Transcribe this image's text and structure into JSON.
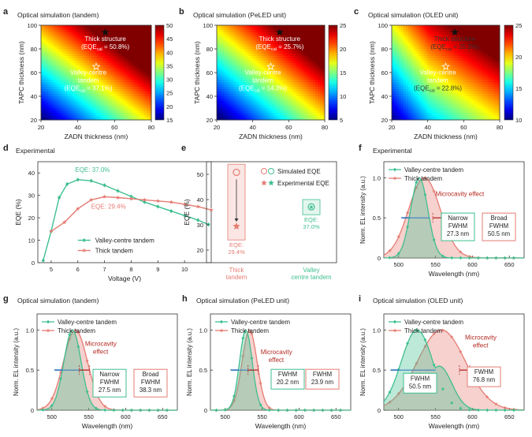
{
  "colors": {
    "green": "#3fbf8f",
    "salmon": "#e57c73",
    "red_dark": "#b22a22",
    "blue_arrow": "#3a7fc1"
  },
  "panels": {
    "a": {
      "letter": "a",
      "title": "Optical simulation (tandem)",
      "star_filled": "Thick structure",
      "star_filled_eqe": "(EQE",
      "star_filled_val": " = 50.8%)",
      "star_open": "Valley-centre",
      "star_open2": "tandem",
      "star_open_eqe": "(EQE",
      "star_open_val": " = 37.1%)",
      "sub": "cal"
    },
    "b": {
      "letter": "b",
      "title": "Optical simulation (PeLED unit)",
      "star_filled": "Thick structure",
      "star_filled_eqe": "(EQE",
      "star_filled_val": " = 25.7%)",
      "star_open": "Valley-centre",
      "star_open2": "tandem",
      "star_open_eqe": "(EQE",
      "star_open_val": " = 14.3%)",
      "sub": "cal"
    },
    "c": {
      "letter": "c",
      "title": "Optical simulation (OLED unit)",
      "star_filled": "Thick structure",
      "star_filled_eqe": "(EQE",
      "star_filled_val": " = 25.2%)",
      "star_open": "Valley-centre",
      "star_open2": "tandem",
      "star_open_eqe": "(EQE",
      "star_open_val": " = 22.8%)",
      "sub": "cal"
    },
    "d": {
      "letter": "d",
      "title": "Experimental",
      "ann_green": "EQE: 37.0%",
      "ann_salmon": "EQE: 29.4%"
    },
    "e": {
      "letter": "e",
      "legend_sim": "Simulated EQE",
      "legend_exp": "Experimental EQE",
      "ann_salmon": "EQE:",
      "ann_salmon_v": "29.4%",
      "ann_green": "EQE:",
      "ann_green_v": "37.0%"
    },
    "f": {
      "letter": "f",
      "title": "Experimental",
      "micro": "Microcavity effect",
      "box1": [
        "Narrow",
        "FWHM",
        "27.3 nm"
      ],
      "box2": [
        "Broad",
        "FWHM",
        "50.5 nm"
      ]
    },
    "g": {
      "letter": "g",
      "title": "Optical simulation (tandem)",
      "micro": [
        "Microcavity",
        "effect"
      ],
      "box1": [
        "Narrow",
        "FWHM",
        "27.5 nm"
      ],
      "box2": [
        "Broad",
        "FWHM",
        "38.3 nm"
      ]
    },
    "h": {
      "letter": "h",
      "title": "Optical simulation (PeLED unit)",
      "micro": [
        "Microcavity",
        "effect"
      ],
      "box1": [
        "FWHM",
        "20.2 nm"
      ],
      "box2": [
        "FWHM",
        "23.9 nm"
      ]
    },
    "i": {
      "letter": "i",
      "title": "Optical simulation (OLED unit)",
      "micro": [
        "Microcavity",
        "effect"
      ],
      "box1": [
        "FWHM",
        "50.5 nm"
      ],
      "box2": [
        "FWHM",
        "76.8 nm"
      ]
    }
  },
  "chart_data": [
    {
      "type": "heatmap",
      "panel": "a",
      "xlabel": "ZADN thickness (nm)",
      "ylabel": "TAPC thickness (nm)",
      "xlim": [
        20,
        80
      ],
      "ylim": [
        20,
        100
      ],
      "x_ticks": [
        "20",
        "40",
        "60",
        "80"
      ],
      "y_ticks": [
        "20",
        "40",
        "60",
        "80",
        "100"
      ],
      "colorbar_ticks": [
        "15",
        "20",
        "25",
        "30",
        "35",
        "40",
        "45",
        "50"
      ],
      "colorbar_range": [
        15,
        50
      ],
      "points": [
        {
          "name": "Thick structure",
          "x": 55,
          "y": 94,
          "value": 50.8
        },
        {
          "name": "Valley-centre tandem",
          "x": 50,
          "y": 65,
          "value": 37.1
        }
      ]
    },
    {
      "type": "heatmap",
      "panel": "b",
      "xlabel": "ZADN thickness (nm)",
      "ylabel": "TAPC thickness (nm)",
      "xlim": [
        20,
        80
      ],
      "ylim": [
        20,
        100
      ],
      "x_ticks": [
        "20",
        "40",
        "60",
        "80"
      ],
      "y_ticks": [
        "20",
        "40",
        "60",
        "80",
        "100"
      ],
      "colorbar_ticks": [
        "5",
        "10",
        "15",
        "20",
        "25"
      ],
      "colorbar_range": [
        5,
        25
      ],
      "points": [
        {
          "name": "Thick structure",
          "x": 55,
          "y": 94,
          "value": 25.7
        },
        {
          "name": "Valley-centre tandem",
          "x": 50,
          "y": 65,
          "value": 14.3
        }
      ]
    },
    {
      "type": "heatmap",
      "panel": "c",
      "xlabel": "ZADN thickness (nm)",
      "ylabel": "TAPC thickness (nm)",
      "xlim": [
        20,
        80
      ],
      "ylim": [
        20,
        100
      ],
      "x_ticks": [
        "20",
        "40",
        "60",
        "80"
      ],
      "y_ticks": [
        "20",
        "40",
        "60",
        "80",
        "100"
      ],
      "colorbar_ticks": [
        "10",
        "15",
        "20",
        "25"
      ],
      "colorbar_range": [
        10,
        25
      ],
      "points": [
        {
          "name": "Thick structure",
          "x": 55,
          "y": 94,
          "value": 25.2
        },
        {
          "name": "Valley-centre tandem",
          "x": 50,
          "y": 65,
          "value": 22.8
        }
      ]
    },
    {
      "type": "line",
      "panel": "d",
      "xlabel": "Voltage (V)",
      "ylabel": "EQE (%)",
      "xlim": [
        4.5,
        11
      ],
      "ylim": [
        0,
        45
      ],
      "x_ticks": [
        "5",
        "6",
        "7",
        "8",
        "9",
        "10"
      ],
      "y_ticks": [
        "0",
        "10",
        "20",
        "30",
        "40"
      ],
      "series": [
        {
          "name": "Valley-centre tandem",
          "color": "#3fbf8f",
          "x": [
            4.7,
            5.0,
            5.3,
            5.6,
            6.0,
            6.5,
            7.0,
            7.5,
            8.0,
            8.5,
            9.0,
            9.5,
            10.0,
            10.5,
            10.9
          ],
          "y": [
            1,
            14,
            29,
            35,
            37,
            36.5,
            34.5,
            32,
            29.5,
            27,
            25,
            23,
            21,
            19,
            17
          ]
        },
        {
          "name": "Thick tandem",
          "color": "#e57c73",
          "x": [
            5.0,
            5.5,
            6.0,
            6.5,
            7.0,
            7.5,
            8.0,
            8.5,
            9.0,
            9.5,
            10.0,
            10.5,
            11.0
          ],
          "y": [
            14,
            18,
            24,
            28,
            29.4,
            29,
            28.5,
            28,
            27.5,
            27,
            26,
            25,
            23.5
          ]
        }
      ]
    },
    {
      "type": "scatter",
      "panel": "e",
      "ylabel": "EQE (%)",
      "ylim": [
        15,
        55
      ],
      "y_ticks": [
        "20",
        "30",
        "40",
        "50"
      ],
      "categories": [
        "Thick tandem",
        "Valley centre tandem"
      ],
      "series": [
        {
          "name": "Simulated EQE",
          "values": [
            50.8,
            37.1
          ]
        },
        {
          "name": "Experimental EQE",
          "values": [
            29.4,
            37.0
          ]
        }
      ]
    },
    {
      "type": "area",
      "panel": "f",
      "xlabel": "Wavelength (nm)",
      "ylabel": "Norm. EL intensity (a.u.)",
      "xlim": [
        480,
        670
      ],
      "ylim": [
        0,
        1.2
      ],
      "x_ticks": [
        "500",
        "550",
        "600",
        "650"
      ],
      "y_ticks": [
        "0",
        "0.5",
        "1.0"
      ],
      "legend": [
        "Valley-centre tandem",
        "Thick tandem"
      ],
      "series": [
        {
          "name": "Valley-centre tandem",
          "peak": 528,
          "fwhm": 27.3
        },
        {
          "name": "Thick tandem",
          "peak": 535,
          "fwhm": 50.5
        }
      ]
    },
    {
      "type": "area",
      "panel": "g",
      "xlabel": "Wavelength (nm)",
      "ylabel": "Norm. EL intensity (a.u.)",
      "xlim": [
        480,
        670
      ],
      "ylim": [
        0,
        1.2
      ],
      "x_ticks": [
        "500",
        "550",
        "600",
        "650"
      ],
      "y_ticks": [
        "0",
        "0.5",
        "1.0"
      ],
      "legend": [
        "Valley-centre tandem",
        "Thick tandem"
      ],
      "series": [
        {
          "name": "Valley-centre tandem",
          "peak": 528,
          "fwhm": 27.5
        },
        {
          "name": "Thick tandem",
          "peak": 532,
          "fwhm": 38.3
        }
      ]
    },
    {
      "type": "area",
      "panel": "h",
      "xlabel": "Wavelength (nm)",
      "ylabel": "Norm. EL intensity (a.u.)",
      "xlim": [
        480,
        670
      ],
      "ylim": [
        0,
        1.2
      ],
      "x_ticks": [
        "500",
        "550",
        "600",
        "650"
      ],
      "y_ticks": [
        "0",
        "0.5",
        "1.0"
      ],
      "legend": [
        "Valley-centre tandem",
        "Thick tandem"
      ],
      "series": [
        {
          "name": "Valley-centre tandem",
          "peak": 528,
          "fwhm": 20.2
        },
        {
          "name": "Thick tandem",
          "peak": 533,
          "fwhm": 23.9
        }
      ]
    },
    {
      "type": "area",
      "panel": "i",
      "xlabel": "Wavelength (nm)",
      "ylabel": "Norm. EL intensity (a.u.)",
      "xlim": [
        480,
        670
      ],
      "ylim": [
        0,
        1.2
      ],
      "x_ticks": [
        "500",
        "550",
        "600",
        "650"
      ],
      "y_ticks": [
        "0",
        "0.5",
        "1.0"
      ],
      "legend": [
        "Valley-centre tandem",
        "Thick tandem"
      ],
      "series": [
        {
          "name": "Valley-centre tandem",
          "peak": 525,
          "fwhm": 50.5
        },
        {
          "name": "Thick tandem",
          "peak": 558,
          "fwhm": 76.8
        }
      ]
    }
  ]
}
